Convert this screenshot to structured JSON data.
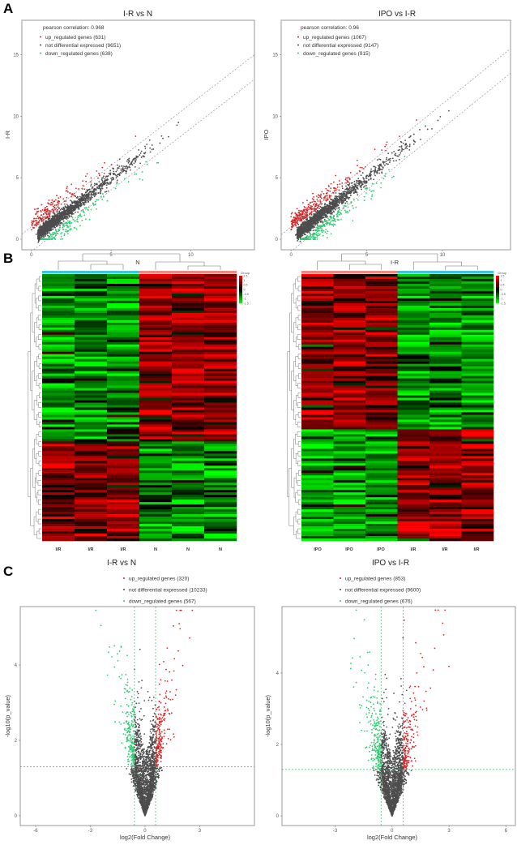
{
  "panel_letters": [
    "A",
    "B",
    "C"
  ],
  "chart_data": [
    {
      "panel": "A",
      "type": "scatter",
      "title": "I-R vs N",
      "xlabel": "N",
      "ylabel": "I-R",
      "xlim": [
        -0.6,
        14.0
      ],
      "ylim": [
        -0.86,
        17.8
      ],
      "xticks": [
        0,
        5,
        10
      ],
      "yticks": [
        0,
        5,
        10,
        15
      ],
      "annotation": "pearson correlation: 0.968",
      "legend": [
        {
          "label": "up_regulated genes (631)",
          "color": "#d62728",
          "count": 631
        },
        {
          "label": "not differential expressed (9651)",
          "color": "#4d4d4d",
          "count": 9651
        },
        {
          "label": "down_regulated genes (638)",
          "color": "#2ecc71",
          "count": 638
        }
      ],
      "reference_lines": "dashed diagonals, fold change threshold",
      "grid": false
    },
    {
      "panel": "A",
      "type": "scatter",
      "title": "IPO vs I-R",
      "xlabel": "I-R",
      "ylabel": "IPO",
      "xlim": [
        -0.65,
        14.5
      ],
      "ylim": [
        -0.86,
        17.8
      ],
      "xticks": [
        0,
        5,
        10
      ],
      "yticks": [
        0,
        5,
        10,
        15
      ],
      "annotation": "pearson correlation: 0.96",
      "legend": [
        {
          "label": "up_regulated genes (1067)",
          "color": "#d62728",
          "count": 1067
        },
        {
          "label": "not differential expressed (9147)",
          "color": "#4d4d4d",
          "count": 9147
        },
        {
          "label": "down_regulated genes (915)",
          "color": "#2ecc71",
          "count": 915
        }
      ],
      "grid": false
    },
    {
      "panel": "B",
      "type": "heatmap",
      "columns": [
        "I/R",
        "I/R",
        "I/R",
        "N",
        "N",
        "N"
      ],
      "group_colors": [
        "#3cc6e0",
        "#3cc6e0",
        "#3cc6e0",
        "#f08a80",
        "#f08a80",
        "#f08a80"
      ],
      "colorbar_title": "Group",
      "colorbar_ticks": [
        "1.5",
        "1",
        "0.5",
        "0",
        "-0.5",
        "-1",
        "-1.5"
      ],
      "colorscale": [
        "#00ff00",
        "#000000",
        "#ff0000"
      ],
      "pattern": "upper cluster low in I/R / high in N; lower cluster high in I/R / low in N"
    },
    {
      "panel": "B",
      "type": "heatmap",
      "columns": [
        "IPO",
        "IPO",
        "IPO",
        "I/R",
        "I/R",
        "I/R"
      ],
      "group_colors": [
        "#f08a80",
        "#f08a80",
        "#f08a80",
        "#3cc6e0",
        "#3cc6e0",
        "#3cc6e0"
      ],
      "colorbar_title": "Group",
      "colorbar_ticks": [
        "1.5",
        "1",
        "0.5",
        "0",
        "-0.5",
        "-1",
        "-1.5"
      ],
      "colorscale": [
        "#00ff00",
        "#000000",
        "#ff0000"
      ],
      "pattern": "upper cluster high in IPO / low in I/R; lower cluster low in IPO / high in I/R"
    },
    {
      "panel": "C",
      "type": "scatter",
      "title": "I-R vs N",
      "xlabel": "log2(Fold Change)",
      "ylabel": "-log10(p_value)",
      "xlim": [
        -6.84,
        6.0
      ],
      "ylim": [
        -0.26,
        5.55
      ],
      "xticks": [
        -6,
        -3,
        0,
        3
      ],
      "yticks": [
        0,
        2,
        4
      ],
      "thresholds": {
        "log2fc": [
          -0.58,
          0.58
        ],
        "neg_log10_p": 1.3
      },
      "legend": [
        {
          "label": "up_regulated genes (320)",
          "color": "#d62728",
          "count": 320
        },
        {
          "label": "not differential expressed (10233)",
          "color": "#4d4d4d",
          "count": 10233
        },
        {
          "label": "down_regulated genes (567)",
          "color": "#2ecc71",
          "count": 567
        }
      ],
      "grid": false
    },
    {
      "panel": "C",
      "type": "scatter",
      "title": "IPO vs I-R",
      "xlabel": "log2(Fold Change)",
      "ylabel": "-log10(p_value)",
      "xlim": [
        -5.8,
        6.5
      ],
      "ylim": [
        -0.27,
        5.86
      ],
      "xticks": [
        -3,
        0,
        3,
        6
      ],
      "yticks": [
        0,
        2,
        4
      ],
      "thresholds": {
        "log2fc": [
          -0.58,
          0.58
        ],
        "neg_log10_p": 1.3
      },
      "legend": [
        {
          "label": "up_regulated genes (853)",
          "color": "#d62728",
          "count": 853
        },
        {
          "label": "not differential expressed (9600)",
          "color": "#4d4d4d",
          "count": 9600
        },
        {
          "label": "down_regulated genes (676)",
          "color": "#2ecc71",
          "count": 676
        }
      ],
      "grid": false
    }
  ]
}
